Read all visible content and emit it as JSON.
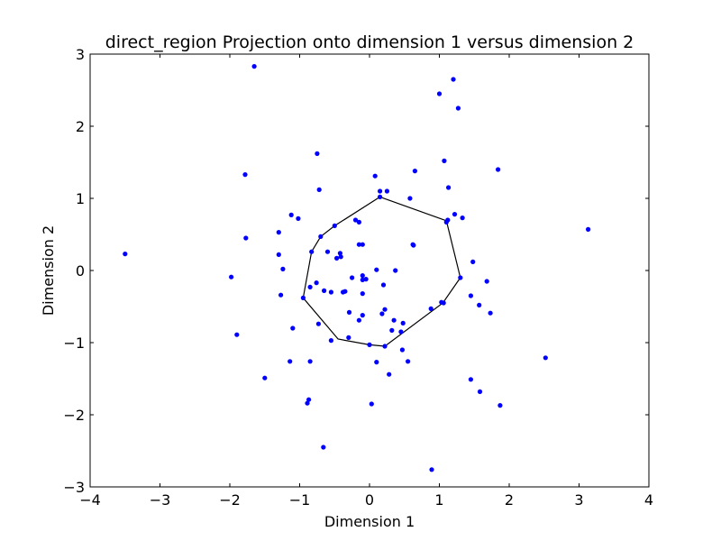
{
  "chart_data": {
    "type": "scatter",
    "title": "direct_region Projection onto dimension 1 versus dimension 2",
    "xlabel": "Dimension 1",
    "ylabel": "Dimension 2",
    "xlim": [
      -4,
      4
    ],
    "ylim": [
      -3,
      3
    ],
    "xticks": [
      -4,
      -3,
      -2,
      -1,
      0,
      1,
      2,
      3,
      4
    ],
    "yticks": [
      -3,
      -2,
      -1,
      0,
      1,
      2,
      3
    ],
    "xtick_labels": [
      "−4",
      "−3",
      "−2",
      "−1",
      "0",
      "1",
      "2",
      "3",
      "4"
    ],
    "ytick_labels": [
      "−3",
      "−2",
      "−1",
      "0",
      "1",
      "2",
      "3"
    ],
    "grid": false,
    "point_color": "#0000ff",
    "hull_color": "#000000",
    "points": [
      [
        -3.5,
        0.23
      ],
      [
        -1.65,
        2.83
      ],
      [
        -1.78,
        1.33
      ],
      [
        -1.77,
        0.45
      ],
      [
        -1.98,
        -0.09
      ],
      [
        -1.9,
        -0.89
      ],
      [
        -1.5,
        -1.49
      ],
      [
        -1.3,
        0.53
      ],
      [
        -1.3,
        0.22
      ],
      [
        -1.24,
        0.02
      ],
      [
        -1.27,
        -0.34
      ],
      [
        -1.12,
        0.77
      ],
      [
        -1.1,
        -0.8
      ],
      [
        -1.14,
        -1.26
      ],
      [
        -1.02,
        0.72
      ],
      [
        -0.95,
        -0.38
      ],
      [
        -0.87,
        -1.79
      ],
      [
        -0.89,
        -1.84
      ],
      [
        -0.85,
        -1.26
      ],
      [
        -0.85,
        -0.23
      ],
      [
        -0.83,
        0.26
      ],
      [
        -0.75,
        1.62
      ],
      [
        -0.72,
        1.12
      ],
      [
        -0.7,
        0.47
      ],
      [
        -0.76,
        -0.17
      ],
      [
        -0.73,
        -0.74
      ],
      [
        -0.66,
        -2.45
      ],
      [
        -0.65,
        -0.28
      ],
      [
        -0.6,
        0.26
      ],
      [
        -0.55,
        -0.3
      ],
      [
        -0.55,
        -0.97
      ],
      [
        -0.5,
        0.62
      ],
      [
        -0.47,
        0.17
      ],
      [
        -0.42,
        0.24
      ],
      [
        -0.41,
        0.19
      ],
      [
        -0.38,
        -0.3
      ],
      [
        -0.35,
        -0.29
      ],
      [
        -0.3,
        -0.93
      ],
      [
        -0.29,
        -0.58
      ],
      [
        -0.25,
        -0.1
      ],
      [
        -0.2,
        0.7
      ],
      [
        -0.15,
        0.36
      ],
      [
        -0.15,
        0.67
      ],
      [
        -0.1,
        0.36
      ],
      [
        -0.1,
        -0.07
      ],
      [
        -0.1,
        -0.13
      ],
      [
        -0.1,
        -0.32
      ],
      [
        -0.1,
        -0.62
      ],
      [
        -0.15,
        -0.69
      ],
      [
        -0.05,
        -0.12
      ],
      [
        0.0,
        -1.03
      ],
      [
        0.03,
        -1.85
      ],
      [
        0.08,
        1.31
      ],
      [
        0.1,
        0.01
      ],
      [
        0.1,
        -1.27
      ],
      [
        0.15,
        1.1
      ],
      [
        0.15,
        1.02
      ],
      [
        0.18,
        -0.6
      ],
      [
        0.2,
        -0.2
      ],
      [
        0.22,
        -0.54
      ],
      [
        0.22,
        -1.05
      ],
      [
        0.25,
        1.1
      ],
      [
        0.28,
        -1.44
      ],
      [
        0.32,
        -0.83
      ],
      [
        0.35,
        -0.69
      ],
      [
        0.37,
        0.0
      ],
      [
        0.45,
        -0.85
      ],
      [
        0.47,
        -1.1
      ],
      [
        0.48,
        -0.73
      ],
      [
        0.55,
        -1.26
      ],
      [
        0.58,
        1.0
      ],
      [
        0.62,
        0.36
      ],
      [
        0.63,
        0.35
      ],
      [
        0.65,
        1.38
      ],
      [
        0.88,
        -0.53
      ],
      [
        0.89,
        -2.76
      ],
      [
        1.0,
        2.45
      ],
      [
        1.03,
        -0.44
      ],
      [
        1.06,
        -0.45
      ],
      [
        1.07,
        1.52
      ],
      [
        1.1,
        0.67
      ],
      [
        1.12,
        0.7
      ],
      [
        1.13,
        1.15
      ],
      [
        1.2,
        2.65
      ],
      [
        1.22,
        0.78
      ],
      [
        1.27,
        2.25
      ],
      [
        1.3,
        -0.1
      ],
      [
        1.33,
        0.73
      ],
      [
        1.45,
        -0.35
      ],
      [
        1.45,
        -1.51
      ],
      [
        1.48,
        0.12
      ],
      [
        1.57,
        -0.48
      ],
      [
        1.58,
        -1.68
      ],
      [
        1.68,
        -0.15
      ],
      [
        1.73,
        -0.59
      ],
      [
        1.84,
        1.4
      ],
      [
        1.87,
        -1.87
      ],
      [
        2.52,
        -1.21
      ],
      [
        3.13,
        0.57
      ]
    ],
    "hull": [
      [
        0.15,
        1.02
      ],
      [
        1.1,
        0.69
      ],
      [
        1.3,
        -0.1
      ],
      [
        1.05,
        -0.45
      ],
      [
        0.22,
        -1.05
      ],
      [
        0.0,
        -1.03
      ],
      [
        -0.45,
        -0.95
      ],
      [
        -0.95,
        -0.38
      ],
      [
        -0.83,
        0.26
      ],
      [
        -0.7,
        0.47
      ],
      [
        -0.5,
        0.62
      ],
      [
        0.15,
        1.02
      ]
    ]
  }
}
